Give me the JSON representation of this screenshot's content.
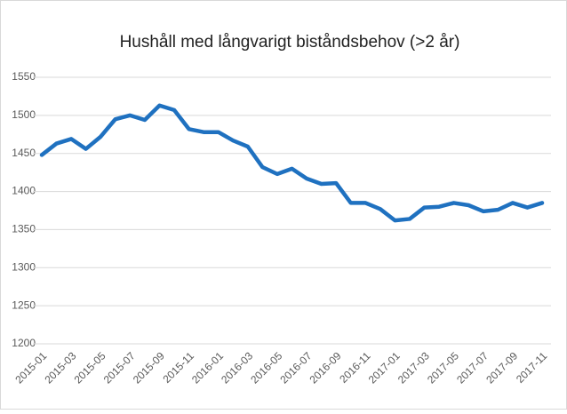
{
  "chart_data": {
    "type": "line",
    "title": "Hushåll med långvarigt biståndsbehov (>2 år)",
    "categories": [
      "2015-01",
      null,
      "2015-03",
      null,
      "2015-05",
      null,
      "2015-07",
      null,
      "2015-09",
      null,
      "2015-11",
      null,
      "2016-01",
      null,
      "2016-03",
      null,
      "2016-05",
      null,
      "2016-07",
      null,
      "2016-09",
      null,
      "2016-11",
      null,
      "2017-01",
      null,
      "2017-03",
      null,
      "2017-05",
      null,
      "2017-07",
      null,
      "2017-09",
      null,
      "2017-11"
    ],
    "values": [
      1448,
      1463,
      1469,
      1456,
      1472,
      1495,
      1500,
      1494,
      1513,
      1507,
      1482,
      1478,
      1478,
      1467,
      1459,
      1432,
      1423,
      1430,
      1417,
      1410,
      1411,
      1385,
      1385,
      1377,
      1362,
      1364,
      1379,
      1380,
      1385,
      1382,
      1374,
      1376,
      1385,
      1379,
      1385
    ],
    "color": "#1f71c0",
    "ylim": [
      1200,
      1550
    ],
    "yticks": [
      1200,
      1250,
      1300,
      1350,
      1400,
      1450,
      1500,
      1550
    ],
    "grid": true
  }
}
